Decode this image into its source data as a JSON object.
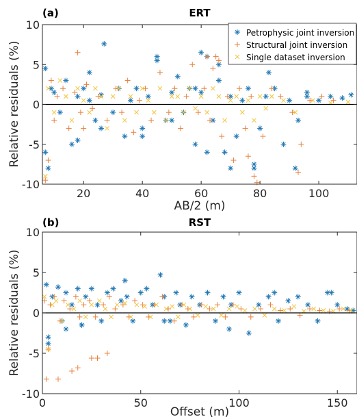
{
  "colors": {
    "petro": "#1f77b4",
    "struct": "#e8803a",
    "single": "#f2c43a",
    "zero_line": "#000000",
    "axes": "#262626"
  },
  "legend": {
    "placement": "top-right",
    "entries": [
      "Petrophysic joint inversion",
      "Structural joint inversion",
      "Single dataset inversion"
    ]
  },
  "chart_data": [
    {
      "type": "scatter",
      "panel_label": "(a)",
      "title": "ERT",
      "xlabel": "AB/2 (m)",
      "ylabel": "Relative residuals (%)",
      "xlim": [
        6,
        113
      ],
      "ylim": [
        -10,
        10
      ],
      "xticks": [
        20,
        40,
        60,
        80,
        100
      ],
      "yticks": [
        -10,
        -5,
        0,
        5,
        10
      ],
      "grid": false,
      "legend": "top-right",
      "series": [
        {
          "name": "Petrophysic joint inversion",
          "marker": "*",
          "x": [
            7,
            7,
            8,
            9,
            10,
            12,
            14,
            16,
            18,
            20,
            22,
            24,
            26,
            27,
            30,
            32,
            34,
            36,
            38,
            40,
            42,
            45,
            48,
            50,
            52,
            54,
            56,
            58,
            60,
            62,
            64,
            66,
            68,
            70,
            72,
            74,
            76,
            78,
            80,
            82,
            85,
            88,
            90,
            93,
            96,
            100,
            104,
            108,
            111,
            26,
            45,
            40,
            60,
            62,
            58,
            18,
            22,
            50,
            66,
            70,
            78,
            92,
            96,
            83
          ],
          "y": [
            4.5,
            -6,
            -8,
            2,
            1.5,
            -1,
            3,
            -5,
            1,
            2,
            0.5,
            -2,
            1.2,
            7.6,
            -1,
            2,
            -4,
            0.5,
            2,
            -3,
            1,
            5.5,
            -2,
            1.5,
            3.5,
            -1,
            2,
            -5,
            1.5,
            6,
            -2,
            3,
            -6,
            1,
            -4,
            0.5,
            2,
            -7.5,
            -3,
            1,
            2,
            -5,
            0.5,
            -2,
            1,
            0.5,
            1,
            0.8,
            1.2,
            -3,
            6,
            -4,
            6.5,
            -6,
            2,
            -4.5,
            4,
            -2,
            5,
            -8,
            -8,
            -8,
            1.5,
            4
          ]
        },
        {
          "name": "Structural joint inversion",
          "marker": "+",
          "x": [
            7,
            8,
            9,
            10,
            11,
            13,
            15,
            17,
            19,
            21,
            23,
            25,
            28,
            31,
            33,
            35,
            37,
            39,
            41,
            43,
            46,
            49,
            51,
            53,
            55,
            57,
            59,
            61,
            63,
            65,
            67,
            69,
            71,
            73,
            75,
            77,
            79,
            81,
            84,
            87,
            91,
            94,
            97,
            101,
            105,
            18,
            20,
            62,
            64,
            66,
            76,
            78,
            93
          ],
          "y": [
            -9.5,
            -7,
            3,
            -2,
            1,
            2,
            -3,
            1.5,
            -1,
            2.5,
            -0.5,
            1,
            -2,
            2,
            -1,
            3,
            -3.5,
            0.5,
            2,
            -2,
            4,
            -1,
            2,
            -3,
            1,
            5,
            -1,
            2,
            -2,
            6,
            -4,
            1,
            -7,
            2,
            -3,
            1,
            -9.8,
            -4,
            2,
            1,
            -1,
            -5,
            0.5,
            1,
            0.5,
            6.5,
            -3,
            6,
            4.5,
            5.5,
            -6.5,
            -9,
            -8.5
          ]
        },
        {
          "name": "Single dataset inversion",
          "marker": "x",
          "x": [
            7,
            8,
            10,
            12,
            14,
            16,
            18,
            20,
            22,
            24,
            26,
            28,
            30,
            32,
            34,
            36,
            38,
            40,
            42,
            44,
            46,
            48,
            50,
            52,
            54,
            56,
            58,
            60,
            62,
            64,
            66,
            68,
            70,
            72,
            74,
            76,
            78,
            80,
            82,
            84,
            88,
            92,
            98,
            104,
            110
          ],
          "y": [
            -9,
            2,
            -1,
            3,
            1,
            -2,
            2,
            0.5,
            -1,
            2,
            1,
            -3,
            1,
            2,
            -2,
            1,
            -1,
            2,
            0.5,
            -1,
            2,
            -2,
            1,
            1,
            -1,
            2,
            -0.5,
            1,
            -1,
            2,
            1,
            -2,
            0.5,
            1,
            -1,
            0.5,
            -2,
            1,
            -0.5,
            1,
            0.5,
            -1,
            0.5,
            0.2,
            0.3
          ]
        }
      ]
    },
    {
      "type": "scatter",
      "panel_label": "(b)",
      "title": "RST",
      "xlabel": "Offset (m)",
      "ylabel": "Relative residuals (%)",
      "xlim": [
        0,
        160
      ],
      "ylim": [
        -10,
        10
      ],
      "xticks": [
        0,
        50,
        100,
        150
      ],
      "yticks": [
        -10,
        -5,
        0,
        5,
        10
      ],
      "grid": false,
      "series": [
        {
          "name": "Petrophysic joint inversion",
          "marker": "*",
          "x": [
            2,
            3,
            5,
            8,
            10,
            12,
            15,
            18,
            20,
            22,
            25,
            28,
            30,
            33,
            36,
            40,
            43,
            46,
            50,
            53,
            56,
            60,
            62,
            65,
            68,
            70,
            73,
            76,
            80,
            84,
            88,
            92,
            96,
            100,
            105,
            110,
            115,
            120,
            125,
            130,
            135,
            140,
            145,
            150,
            155,
            158,
            3,
            12,
            20,
            42,
            62,
            95,
            118,
            147
          ],
          "y": [
            3.5,
            -3.8,
            2,
            3.2,
            -1,
            2.5,
            1,
            3,
            -1.5,
            2,
            3,
            1,
            -1,
            2.5,
            3,
            1.5,
            2,
            -1,
            2.5,
            3,
            1,
            4.7,
            2,
            -1,
            2.5,
            1,
            -1.5,
            2,
            1,
            2.5,
            -1,
            2,
            1,
            2.5,
            -2.5,
            1,
            2,
            -1,
            1.5,
            2,
            1,
            -1,
            2.5,
            1,
            0.5,
            0.3,
            -3,
            -2,
            -1.5,
            4,
            -1,
            -2,
            2.5,
            2.5
          ]
        },
        {
          "name": "Structural joint inversion",
          "marker": "+",
          "x": [
            1,
            2,
            4,
            6,
            9,
            11,
            14,
            17,
            19,
            21,
            24,
            27,
            31,
            34,
            37,
            41,
            44,
            47,
            51,
            54,
            57,
            61,
            64,
            67,
            71,
            74,
            77,
            81,
            85,
            89,
            93,
            97,
            101,
            106,
            111,
            116,
            121,
            126,
            131,
            136,
            141,
            146,
            151,
            156,
            3,
            8,
            15,
            18,
            25,
            28,
            33
          ],
          "y": [
            1.5,
            -8.2,
            1,
            2,
            -1,
            1.5,
            0.5,
            2,
            -0.5,
            1,
            1.5,
            -0.5,
            1,
            2,
            0.5,
            1,
            -0.5,
            1.5,
            1,
            -0.5,
            1,
            2,
            0.5,
            -1,
            1,
            0.5,
            -0.5,
            1,
            0.5,
            1,
            -0.5,
            1,
            0.5,
            -0.5,
            0.5,
            1,
            0.3,
            0.5,
            -0.3,
            0.5,
            0.3,
            0.2,
            0.5,
            0.3,
            -4.5,
            -8.2,
            -7.2,
            -6.8,
            -5.6,
            -5.6,
            -5
          ]
        },
        {
          "name": "Single dataset inversion",
          "marker": "x",
          "x": [
            1,
            3,
            5,
            7,
            10,
            13,
            16,
            19,
            22,
            25,
            29,
            32,
            35,
            38,
            42,
            45,
            48,
            52,
            55,
            58,
            63,
            66,
            69,
            72,
            75,
            79,
            83,
            87,
            91,
            95,
            99,
            103,
            108,
            113,
            118,
            123,
            128,
            133,
            138,
            143,
            148,
            153,
            157
          ],
          "y": [
            2,
            -4.5,
            1,
            1.5,
            -1,
            1,
            0.5,
            1.5,
            -0.5,
            1,
            1.5,
            0.5,
            -0.5,
            1,
            1.2,
            -0.5,
            1,
            0.8,
            -0.5,
            1,
            0.5,
            0.8,
            -0.5,
            1,
            0.5,
            -0.3,
            0.8,
            0.5,
            -0.3,
            0.5,
            0.8,
            0.3,
            0.5,
            -0.3,
            0.5,
            0.3,
            0.8,
            0.2,
            0.5,
            0.3,
            0.2,
            0.5,
            0.3
          ]
        }
      ]
    }
  ]
}
